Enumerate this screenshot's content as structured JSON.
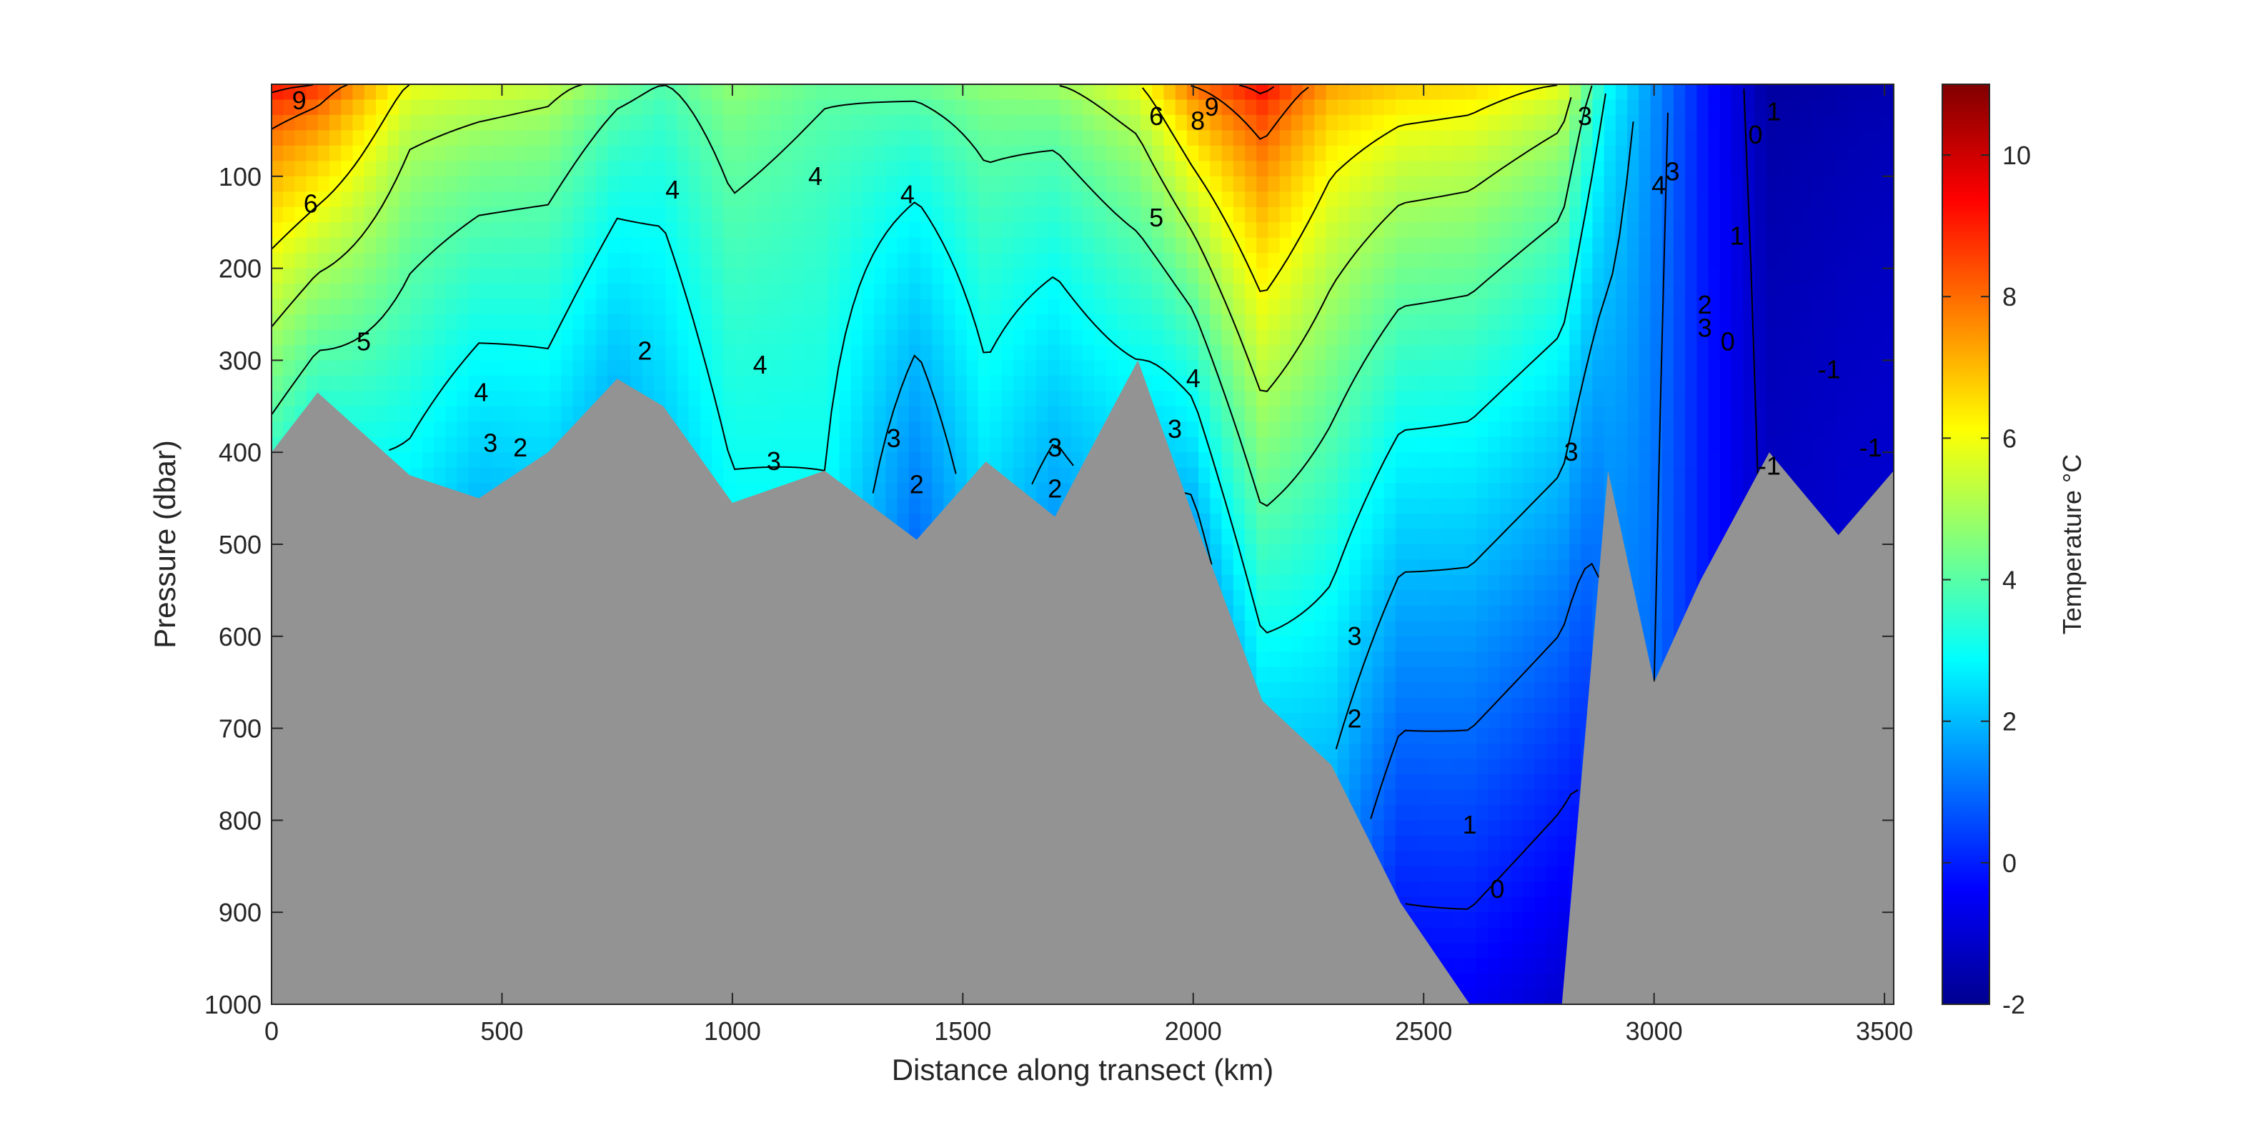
{
  "chart_data": {
    "type": "heatmap",
    "title": "",
    "xlabel": "Distance along transect (km)",
    "ylabel": "Pressure (dbar)",
    "colorbar_label": "Temperature °C",
    "xlim": [
      0,
      3520
    ],
    "ylim": [
      0,
      1000
    ],
    "y_reversed": true,
    "x_ticks": [
      0,
      500,
      1000,
      1500,
      2000,
      2500,
      3000,
      3500
    ],
    "y_ticks": [
      100,
      200,
      300,
      400,
      500,
      600,
      700,
      800,
      900,
      1000
    ],
    "colorbar_range": [
      -2,
      11
    ],
    "colorbar_ticks": [
      -2,
      0,
      2,
      4,
      6,
      8,
      10
    ],
    "colormap": "jet",
    "bathymetry_color": "#939393",
    "grid": false,
    "profiles": [
      {
        "x": 0,
        "surface": 9.5,
        "bottom": 3.6,
        "bottom_depth": 400
      },
      {
        "x": 100,
        "surface": 9.0,
        "bottom": 3.5,
        "bottom_depth": 335
      },
      {
        "x": 300,
        "surface": 6.0,
        "bottom": 2.8,
        "bottom_depth": 425
      },
      {
        "x": 450,
        "surface": 5.8,
        "bottom": 2.0,
        "bottom_depth": 450
      },
      {
        "x": 600,
        "surface": 5.5,
        "bottom": 2.4,
        "bottom_depth": 400
      },
      {
        "x": 750,
        "surface": 4.5,
        "bottom": 2.0,
        "bottom_depth": 320
      },
      {
        "x": 850,
        "surface": 4.0,
        "bottom": 2.3,
        "bottom_depth": 350
      },
      {
        "x": 1000,
        "surface": 4.8,
        "bottom": 2.9,
        "bottom_depth": 455
      },
      {
        "x": 1200,
        "surface": 4.2,
        "bottom": 3.0,
        "bottom_depth": 420
      },
      {
        "x": 1400,
        "surface": 4.4,
        "bottom": 1.0,
        "bottom_depth": 495
      },
      {
        "x": 1550,
        "surface": 4.8,
        "bottom": 2.6,
        "bottom_depth": 410
      },
      {
        "x": 1700,
        "surface": 5.0,
        "bottom": 1.6,
        "bottom_depth": 470
      },
      {
        "x": 1880,
        "surface": 6.0,
        "bottom": 3.0,
        "bottom_depth": 300
      },
      {
        "x": 2000,
        "surface": 8.2,
        "bottom": 1.8,
        "bottom_depth": 470
      },
      {
        "x": 2150,
        "surface": 9.5,
        "bottom": 2.5,
        "bottom_depth": 670
      },
      {
        "x": 2300,
        "surface": 7.5,
        "bottom": 2.0,
        "bottom_depth": 740
      },
      {
        "x": 2450,
        "surface": 7.0,
        "bottom": 0.0,
        "bottom_depth": 890
      },
      {
        "x": 2600,
        "surface": 6.8,
        "bottom": -0.5,
        "bottom_depth": 1000
      },
      {
        "x": 2800,
        "surface": 6.0,
        "bottom": -1.0,
        "bottom_depth": 1000
      },
      {
        "x": 2900,
        "surface": 3.0,
        "bottom": 1.5,
        "bottom_depth": 420
      },
      {
        "x": 3000,
        "surface": 1.5,
        "bottom": 1.0,
        "bottom_depth": 650
      },
      {
        "x": 3100,
        "surface": 0.0,
        "bottom": 0.0,
        "bottom_depth": 540
      },
      {
        "x": 3250,
        "surface": -1.6,
        "bottom": -1.2,
        "bottom_depth": 400
      },
      {
        "x": 3400,
        "surface": -1.5,
        "bottom": -1.0,
        "bottom_depth": 490
      },
      {
        "x": 3520,
        "surface": -1.4,
        "bottom": -1.0,
        "bottom_depth": 420
      }
    ],
    "contour_labels": [
      {
        "text": "9",
        "x": 60,
        "y": 18
      },
      {
        "text": "6",
        "x": 85,
        "y": 130
      },
      {
        "text": "5",
        "x": 200,
        "y": 280
      },
      {
        "text": "4",
        "x": 455,
        "y": 335
      },
      {
        "text": "3",
        "x": 475,
        "y": 390
      },
      {
        "text": "2",
        "x": 540,
        "y": 395
      },
      {
        "text": "2",
        "x": 810,
        "y": 290
      },
      {
        "text": "4",
        "x": 870,
        "y": 115
      },
      {
        "text": "4",
        "x": 1180,
        "y": 100
      },
      {
        "text": "4",
        "x": 1380,
        "y": 120
      },
      {
        "text": "4",
        "x": 1060,
        "y": 305
      },
      {
        "text": "3",
        "x": 1090,
        "y": 410
      },
      {
        "text": "3",
        "x": 1350,
        "y": 385
      },
      {
        "text": "2",
        "x": 1400,
        "y": 435
      },
      {
        "text": "3",
        "x": 1700,
        "y": 395
      },
      {
        "text": "2",
        "x": 1700,
        "y": 440
      },
      {
        "text": "5",
        "x": 1920,
        "y": 145
      },
      {
        "text": "6",
        "x": 1920,
        "y": 35
      },
      {
        "text": "8",
        "x": 2010,
        "y": 40
      },
      {
        "text": "9",
        "x": 2040,
        "y": 25
      },
      {
        "text": "4",
        "x": 2000,
        "y": 320
      },
      {
        "text": "3",
        "x": 1960,
        "y": 375
      },
      {
        "text": "3",
        "x": 2350,
        "y": 600
      },
      {
        "text": "2",
        "x": 2350,
        "y": 690
      },
      {
        "text": "1",
        "x": 2600,
        "y": 805
      },
      {
        "text": "0",
        "x": 2660,
        "y": 875
      },
      {
        "text": "3",
        "x": 2820,
        "y": 400
      },
      {
        "text": "3",
        "x": 2850,
        "y": 35
      },
      {
        "text": "4",
        "x": 3010,
        "y": 110
      },
      {
        "text": "3",
        "x": 3040,
        "y": 95
      },
      {
        "text": "3",
        "x": 3110,
        "y": 265
      },
      {
        "text": "2",
        "x": 3110,
        "y": 240
      },
      {
        "text": "0",
        "x": 3160,
        "y": 280
      },
      {
        "text": "0",
        "x": 3220,
        "y": 55
      },
      {
        "text": "1",
        "x": 3260,
        "y": 30
      },
      {
        "text": "1",
        "x": 3180,
        "y": 165
      },
      {
        "text": "-1",
        "x": 3250,
        "y": 415
      },
      {
        "text": "-1",
        "x": 3380,
        "y": 310
      },
      {
        "text": "-1",
        "x": 3470,
        "y": 395
      }
    ]
  }
}
